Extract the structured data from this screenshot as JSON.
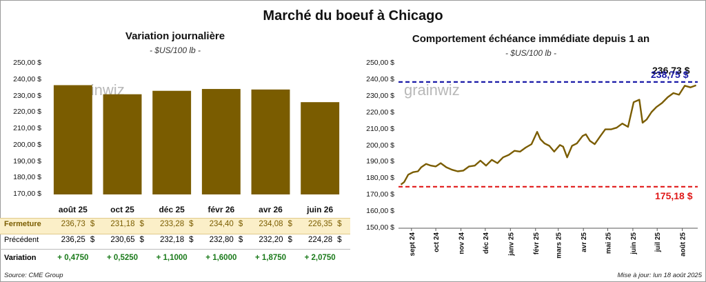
{
  "title": "Marché du boeuf à Chicago",
  "left": {
    "title": "Variation journalière",
    "unit": "- $US/100 lb -",
    "watermark": "grainwiz",
    "yticks": [
      "250,00 $",
      "240,00 $",
      "230,00 $",
      "220,00 $",
      "210,00 $",
      "200,00 $",
      "190,00 $",
      "180,00 $",
      "170,00 $"
    ],
    "bar_color": "#7a5c00",
    "table": {
      "rows": [
        {
          "label": "Fermeture",
          "values": [
            "236,73",
            "231,18",
            "233,28",
            "234,40",
            "234,08",
            "226,35"
          ],
          "dollar": "$"
        },
        {
          "label": "Précédent",
          "values": [
            "236,25",
            "230,65",
            "232,18",
            "232,80",
            "232,20",
            "224,28"
          ],
          "dollar": "$"
        },
        {
          "label": "Variation",
          "values": [
            "+ 0,4750",
            "+ 0,5250",
            "+ 1,1000",
            "+ 1,6000",
            "+ 1,8750",
            "+ 2,0750"
          ]
        }
      ]
    }
  },
  "right": {
    "title": "Comportement échéance immédiate depuis 1 an",
    "unit": "- $US/100 lb -",
    "watermark": "grainwiz",
    "yticks": [
      "250,00 $",
      "240,00 $",
      "230,00 $",
      "220,00 $",
      "210,00 $",
      "200,00 $",
      "190,00 $",
      "180,00 $",
      "170,00 $",
      "160,00 $",
      "150,00 $"
    ],
    "xticks": [
      "sept 24",
      "oct 24",
      "nov 24",
      "déc 24",
      "janv 25",
      "févr 25",
      "mars 25",
      "avr 25",
      "mai 25",
      "juin 25",
      "juil 25",
      "août 25"
    ],
    "high_label": "238,75 $",
    "low_label": "175,18 $",
    "last_label": "236,73 $",
    "line_color": "#7a5c00",
    "high_color": "#1a1aa8",
    "low_color": "#e01818"
  },
  "footer": {
    "source": "Source: CME Group",
    "updated": "Mise à jour: lun 18 août 2025"
  },
  "chart_data": [
    {
      "type": "bar",
      "title": "Variation journalière",
      "categories": [
        "août 25",
        "oct 25",
        "déc 25",
        "févr 26",
        "avr 26",
        "juin 26"
      ],
      "values": [
        236.73,
        231.18,
        233.28,
        234.4,
        234.08,
        226.35
      ],
      "ylim": [
        170,
        250
      ]
    },
    {
      "type": "line",
      "title": "Comportement échéance immédiate depuis 1 an",
      "ylim": [
        150,
        250
      ],
      "x": [
        "2024-08-19",
        "2024-08-23",
        "2024-08-28",
        "2024-09-03",
        "2024-09-09",
        "2024-09-13",
        "2024-09-19",
        "2024-09-25",
        "2024-10-01",
        "2024-10-07",
        "2024-10-14",
        "2024-10-21",
        "2024-10-28",
        "2024-11-04",
        "2024-11-11",
        "2024-11-18",
        "2024-11-25",
        "2024-12-02",
        "2024-12-09",
        "2024-12-16",
        "2024-12-23",
        "2024-12-30",
        "2025-01-06",
        "2025-01-13",
        "2025-01-20",
        "2025-01-27",
        "2025-02-03",
        "2025-02-07",
        "2025-02-12",
        "2025-02-18",
        "2025-02-24",
        "2025-03-03",
        "2025-03-07",
        "2025-03-12",
        "2025-03-18",
        "2025-03-24",
        "2025-03-31",
        "2025-04-04",
        "2025-04-09",
        "2025-04-15",
        "2025-04-22",
        "2025-04-28",
        "2025-05-05",
        "2025-05-12",
        "2025-05-19",
        "2025-05-26",
        "2025-06-02",
        "2025-06-09",
        "2025-06-13",
        "2025-06-18",
        "2025-06-24",
        "2025-06-30",
        "2025-07-07",
        "2025-07-14",
        "2025-07-21",
        "2025-07-28",
        "2025-08-04",
        "2025-08-11",
        "2025-08-18"
      ],
      "series": [
        {
          "values": [
            176.5,
            178.0,
            182.5,
            184.0,
            184.5,
            187.0,
            189.0,
            188.0,
            187.5,
            189.5,
            187.0,
            185.5,
            184.5,
            185.0,
            187.5,
            188.0,
            191.0,
            188.0,
            191.5,
            189.5,
            193.0,
            194.5,
            197.0,
            196.5,
            199.0,
            201.0,
            208.5,
            204.0,
            201.5,
            200.0,
            196.5,
            200.5,
            199.5,
            193.0,
            200.0,
            201.5,
            206.0,
            207.0,
            203.0,
            201.0,
            206.0,
            210.0,
            210.0,
            211.0,
            213.5,
            211.5,
            226.5,
            228.0,
            214.0,
            216.0,
            220.5,
            223.5,
            226.0,
            229.5,
            232.0,
            231.0,
            236.5,
            235.5,
            236.73
          ]
        }
      ],
      "annotations": [
        {
          "label": "238,75 $",
          "y": 238.75
        },
        {
          "label": "175,18 $",
          "y": 175.18
        },
        {
          "label": "236,73 $",
          "y": 236.73
        }
      ]
    }
  ]
}
